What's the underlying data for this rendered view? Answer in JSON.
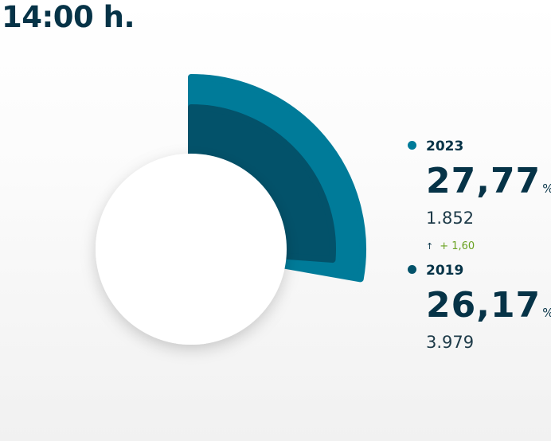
{
  "header": {
    "time_label": "14:00 h."
  },
  "colors": {
    "series_2023": "#007b99",
    "series_2019": "#03526a",
    "positive": "#6aa222",
    "text": "#063347"
  },
  "chart_data": {
    "type": "pie",
    "style": "polar-area-gauge",
    "series": [
      {
        "name": "2023",
        "value": 27.77,
        "count": "1.852",
        "change": "+ 1,60",
        "color": "#007b99"
      },
      {
        "name": "2019",
        "value": 26.17,
        "count": "3.979",
        "color": "#03526a"
      }
    ],
    "unit": "%",
    "legend": "right"
  },
  "legend": {
    "items": [
      {
        "year": "2023",
        "percent": "27,77",
        "unit": "%",
        "count": "1.852",
        "delta_arrow": "↑",
        "delta": "+ 1,60"
      },
      {
        "year": "2019",
        "percent": "26,17",
        "unit": "%",
        "count": "3.979"
      }
    ]
  }
}
